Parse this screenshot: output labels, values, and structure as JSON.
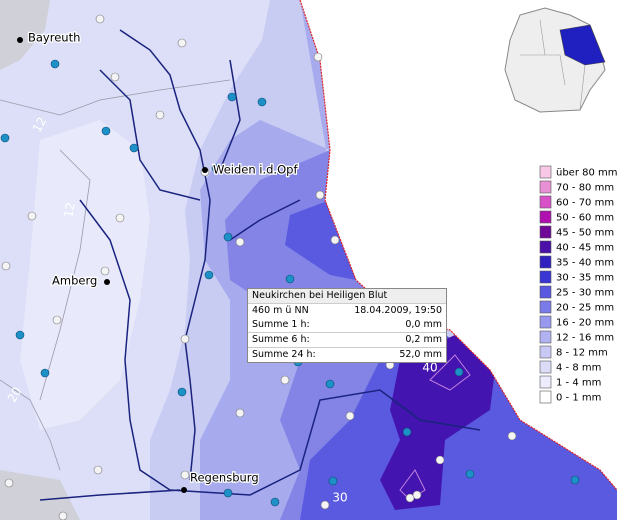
{
  "map": {
    "places": [
      "Bayreuth",
      "Weiden i.d.Opf",
      "Amberg",
      "Regensburg"
    ],
    "contour_labels": [
      "12",
      "12",
      "20",
      "40",
      "30"
    ],
    "legend": [
      {
        "label": "über 80 mm",
        "color": "#f8c8e6"
      },
      {
        "label": "70 - 80 mm",
        "color": "#e890d4"
      },
      {
        "label": "60 - 70 mm",
        "color": "#d850c8"
      },
      {
        "label": "50 - 60 mm",
        "color": "#b010b0"
      },
      {
        "label": "45 - 50 mm",
        "color": "#700898"
      },
      {
        "label": "40 - 45 mm",
        "color": "#4a10a8"
      },
      {
        "label": "35 - 40 mm",
        "color": "#3020c0"
      },
      {
        "label": "30 - 35 mm",
        "color": "#3a36d4"
      },
      {
        "label": "25 - 30 mm",
        "color": "#5858e0"
      },
      {
        "label": "20 - 25 mm",
        "color": "#7a7ae8"
      },
      {
        "label": "16 - 20 mm",
        "color": "#9898ee"
      },
      {
        "label": "12 - 16 mm",
        "color": "#b2b2f2"
      },
      {
        "label": "8 - 12 mm",
        "color": "#c8c8f5"
      },
      {
        "label": "4 -   8 mm",
        "color": "#dcdcf8"
      },
      {
        "label": "1 -   4 mm",
        "color": "#ececfc"
      },
      {
        "label": "0 -   1 mm",
        "color": "#ffffff"
      }
    ],
    "tooltip": {
      "title": "Neukirchen bei Heiligen Blut",
      "elevation": "460 m ü NN",
      "datetime": "18.04.2009, 19:50",
      "rows": [
        [
          "Summe 1 h:",
          "0,0 mm"
        ],
        [
          "Summe 6 h:",
          "0,2 mm"
        ],
        [
          "Summe 24 h:",
          "52,0 mm"
        ]
      ]
    }
  }
}
